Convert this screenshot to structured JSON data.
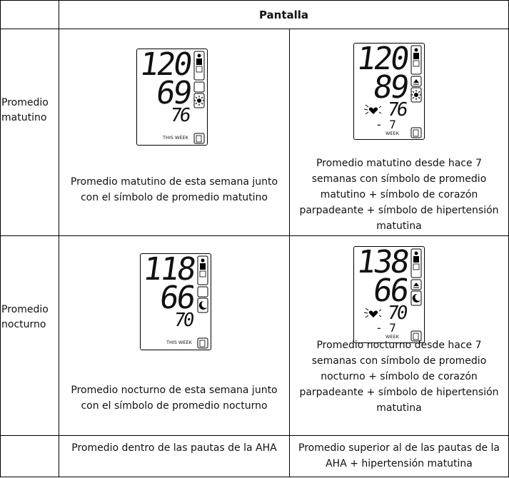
{
  "header": {
    "title": "Pantalla"
  },
  "rows": [
    {
      "label": "Promedio matutino",
      "cells": [
        {
          "display": {
            "systolic": "120",
            "diastolic": "69",
            "pulse": "76",
            "period": "THIS WEEK"
          },
          "caption": "Promedio matutino de esta semana junto con el símbolo de promedio matutino"
        },
        {
          "display": {
            "systolic": "120",
            "diastolic": "89",
            "pulse": "76",
            "weeks": "- 7",
            "period": "WEEK"
          },
          "caption": "Promedio matutino desde hace 7 semanas con símbolo de promedio matutino + símbolo de corazón parpadeante + símbolo de hipertensión matutina"
        }
      ]
    },
    {
      "label": "Promedio nocturno",
      "cells": [
        {
          "display": {
            "systolic": "118",
            "diastolic": "66",
            "pulse": "70",
            "period": "THIS WEEK"
          },
          "caption": "Promedio nocturno de esta semana junto con el símbolo de promedio nocturno"
        },
        {
          "display": {
            "systolic": "138",
            "diastolic": "66",
            "pulse": "70",
            "weeks": "- 7",
            "period": "WEEK"
          },
          "caption": "Promedio nocturno desde hace 7 semanas con símbolo de promedio nocturno + símbolo de corazón parpadeante + símbolo de hipertensión matutina"
        }
      ]
    },
    {
      "cells": [
        {
          "caption": "Promedio dentro de las pautas de la AHA"
        },
        {
          "caption": "Promedio superior al de las pautas de la AHA + hipertensión matutina"
        }
      ]
    }
  ]
}
